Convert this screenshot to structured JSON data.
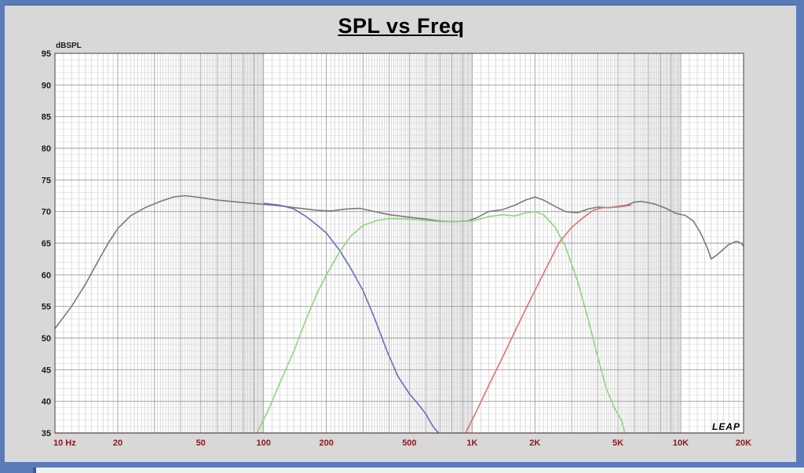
{
  "chart_data": {
    "type": "line",
    "title": "SPL vs Freq",
    "ylabel": "dBSPL",
    "xscale": "log",
    "xlim": [
      10,
      20000
    ],
    "ylim": [
      35,
      95
    ],
    "grid": true,
    "x_ticks": [
      {
        "value": 10,
        "label": "10 Hz"
      },
      {
        "value": 20,
        "label": "20"
      },
      {
        "value": 50,
        "label": "50"
      },
      {
        "value": 100,
        "label": "100"
      },
      {
        "value": 200,
        "label": "200"
      },
      {
        "value": 500,
        "label": "500"
      },
      {
        "value": 1000,
        "label": "1K"
      },
      {
        "value": 2000,
        "label": "2K"
      },
      {
        "value": 5000,
        "label": "5K"
      },
      {
        "value": 10000,
        "label": "10K"
      },
      {
        "value": 20000,
        "label": "20K"
      }
    ],
    "y_ticks": [
      95,
      90,
      85,
      80,
      75,
      70,
      65,
      60,
      55,
      50,
      45,
      40,
      35
    ],
    "watermark": "LEAP",
    "series": [
      {
        "color": "#7a7a7a",
        "points": [
          [
            10,
            51.5
          ],
          [
            12,
            55
          ],
          [
            14,
            58.5
          ],
          [
            16,
            62
          ],
          [
            18,
            65
          ],
          [
            20,
            67.3
          ],
          [
            23,
            69.3
          ],
          [
            27,
            70.6
          ],
          [
            32,
            71.6
          ],
          [
            37,
            72.3
          ],
          [
            42,
            72.5
          ],
          [
            50,
            72.2
          ],
          [
            60,
            71.8
          ],
          [
            75,
            71.5
          ],
          [
            95,
            71.2
          ],
          [
            120,
            70.9
          ],
          [
            150,
            70.5
          ],
          [
            180,
            70.2
          ],
          [
            210,
            70.1
          ],
          [
            250,
            70.4
          ],
          [
            290,
            70.5
          ],
          [
            330,
            70.1
          ],
          [
            400,
            69.5
          ],
          [
            500,
            69.1
          ],
          [
            600,
            68.8
          ],
          [
            700,
            68.5
          ],
          [
            800,
            68.4
          ],
          [
            950,
            68.5
          ],
          [
            1050,
            69
          ],
          [
            1200,
            70
          ],
          [
            1400,
            70.3
          ],
          [
            1600,
            71
          ],
          [
            1800,
            71.8
          ],
          [
            2000,
            72.3
          ],
          [
            2200,
            71.8
          ],
          [
            2500,
            70.8
          ],
          [
            2800,
            70
          ],
          [
            3200,
            69.8
          ],
          [
            3600,
            70.4
          ],
          [
            4000,
            70.7
          ],
          [
            4500,
            70.6
          ],
          [
            5000,
            70.8
          ],
          [
            5500,
            71
          ],
          [
            6000,
            71.5
          ],
          [
            6500,
            71.6
          ],
          [
            7500,
            71.2
          ],
          [
            8500,
            70.5
          ],
          [
            9500,
            69.7
          ],
          [
            10500,
            69.4
          ],
          [
            11500,
            68.5
          ],
          [
            12500,
            66.5
          ],
          [
            13500,
            64
          ],
          [
            14000,
            62.5
          ],
          [
            15000,
            63.2
          ],
          [
            17000,
            64.8
          ],
          [
            18500,
            65.3
          ],
          [
            19500,
            65
          ],
          [
            20000,
            64.5
          ]
        ]
      },
      {
        "color": "#6670b8",
        "points": [
          [
            100,
            71.3
          ],
          [
            120,
            71
          ],
          [
            140,
            70.4
          ],
          [
            160,
            69.2
          ],
          [
            180,
            67.9
          ],
          [
            200,
            66.6
          ],
          [
            230,
            64
          ],
          [
            260,
            61.2
          ],
          [
            300,
            57.5
          ],
          [
            340,
            53.2
          ],
          [
            390,
            48
          ],
          [
            440,
            44
          ],
          [
            500,
            41.2
          ],
          [
            550,
            39.6
          ],
          [
            600,
            38
          ],
          [
            650,
            36
          ],
          [
            690,
            35
          ]
        ]
      },
      {
        "color": "#8ed67a",
        "points": [
          [
            93,
            35
          ],
          [
            105,
            38.5
          ],
          [
            120,
            43
          ],
          [
            140,
            48
          ],
          [
            160,
            53
          ],
          [
            180,
            57
          ],
          [
            200,
            60
          ],
          [
            230,
            63.5
          ],
          [
            260,
            66
          ],
          [
            300,
            67.8
          ],
          [
            350,
            68.6
          ],
          [
            400,
            68.9
          ],
          [
            500,
            68.8
          ],
          [
            600,
            68.6
          ],
          [
            700,
            68.4
          ],
          [
            800,
            68.4
          ],
          [
            1000,
            68.5
          ],
          [
            1200,
            69.2
          ],
          [
            1400,
            69.5
          ],
          [
            1600,
            69.3
          ],
          [
            1800,
            69.8
          ],
          [
            2000,
            70
          ],
          [
            2200,
            69.5
          ],
          [
            2500,
            67.5
          ],
          [
            2800,
            64.5
          ],
          [
            3200,
            59
          ],
          [
            3600,
            53
          ],
          [
            4000,
            47
          ],
          [
            4400,
            42
          ],
          [
            4800,
            39
          ],
          [
            5200,
            37
          ],
          [
            5400,
            35
          ]
        ]
      },
      {
        "color": "#e07070",
        "points": [
          [
            930,
            35
          ],
          [
            1050,
            38.5
          ],
          [
            1200,
            42.5
          ],
          [
            1400,
            47
          ],
          [
            1600,
            51
          ],
          [
            1800,
            54.5
          ],
          [
            2000,
            57.5
          ],
          [
            2300,
            61.5
          ],
          [
            2600,
            65
          ],
          [
            3000,
            67.5
          ],
          [
            3400,
            69
          ],
          [
            3800,
            70.2
          ],
          [
            4200,
            70.6
          ],
          [
            5000,
            70.7
          ],
          [
            5800,
            71
          ]
        ]
      }
    ]
  }
}
